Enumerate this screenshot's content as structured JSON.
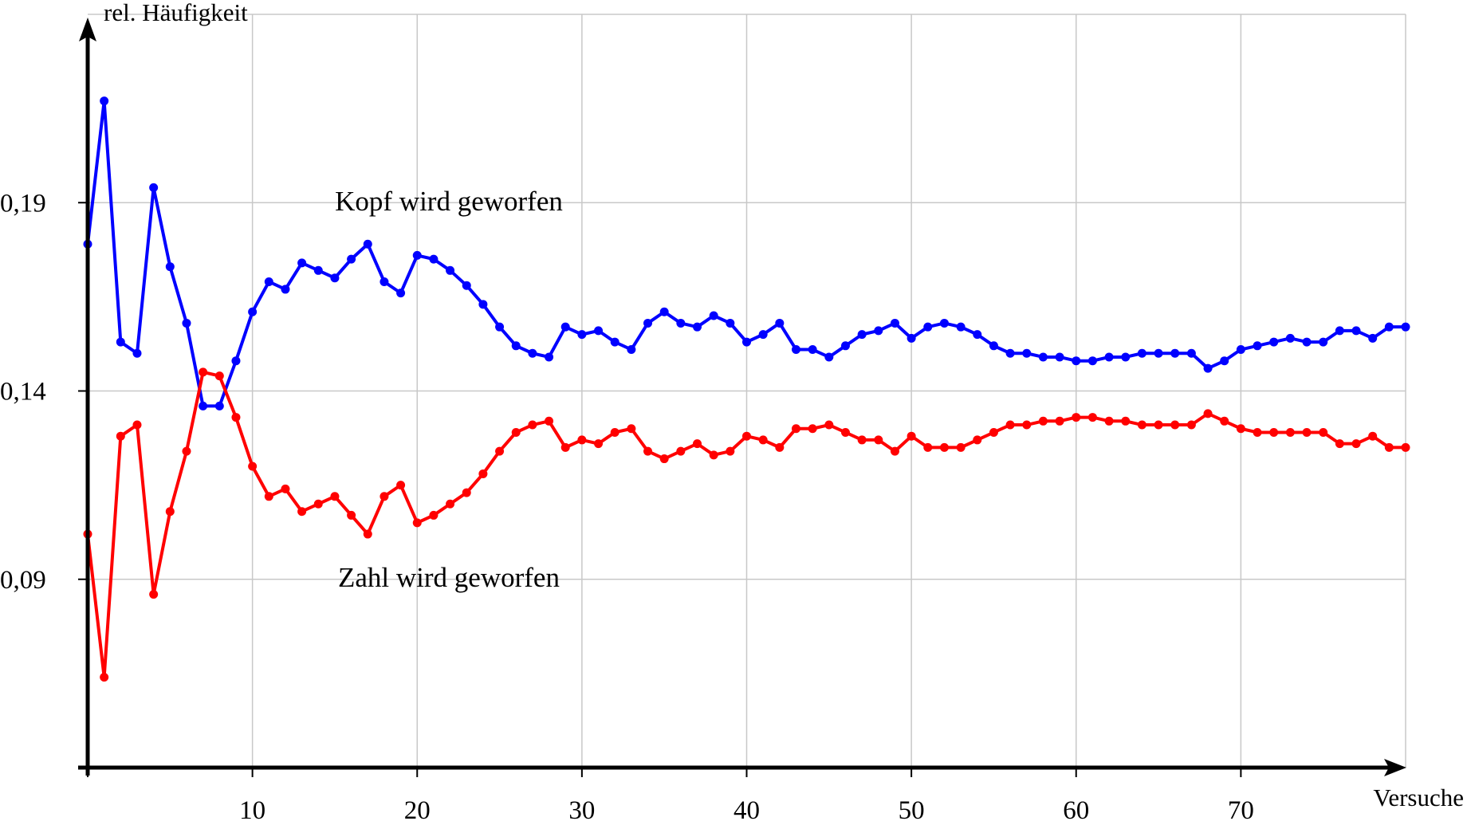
{
  "chart_data": {
    "type": "line",
    "title": "",
    "xlabel": "Versuche",
    "ylabel": "rel. Häufigkeit",
    "xlim": [
      0,
      80
    ],
    "ylim": [
      0.04,
      0.24
    ],
    "x_ticks": [
      10,
      20,
      30,
      40,
      50,
      60,
      70
    ],
    "x_tick_labels": [
      "10",
      "20",
      "30",
      "40",
      "50",
      "60",
      "70"
    ],
    "y_ticks": [
      0.09,
      0.14,
      0.19
    ],
    "y_tick_labels": [
      "0,09",
      "0,14",
      "0,19"
    ],
    "grid": true,
    "x": [
      0,
      1,
      2,
      3,
      4,
      5,
      6,
      7,
      8,
      9,
      10,
      11,
      12,
      13,
      14,
      15,
      16,
      17,
      18,
      19,
      20,
      21,
      22,
      23,
      24,
      25,
      26,
      27,
      28,
      29,
      30,
      31,
      32,
      33,
      34,
      35,
      36,
      37,
      38,
      39,
      40,
      41,
      42,
      43,
      44,
      45,
      46,
      47,
      48,
      49,
      50,
      51,
      52,
      53,
      54,
      55,
      56,
      57,
      58,
      59,
      60,
      61,
      62,
      63,
      64,
      65,
      66,
      67,
      68,
      69,
      70,
      71,
      72,
      73,
      74,
      75,
      76,
      77,
      78,
      79,
      80
    ],
    "series": [
      {
        "name": "Kopf wird geworfen",
        "color": "#0000ff",
        "values": [
          0.179,
          0.217,
          0.153,
          0.15,
          0.194,
          0.173,
          0.158,
          0.136,
          0.136,
          0.148,
          0.161,
          0.169,
          0.167,
          0.174,
          0.172,
          0.17,
          0.175,
          0.179,
          0.169,
          0.166,
          0.176,
          0.175,
          0.172,
          0.168,
          0.163,
          0.157,
          0.152,
          0.15,
          0.149,
          0.157,
          0.155,
          0.156,
          0.153,
          0.151,
          0.158,
          0.161,
          0.158,
          0.157,
          0.16,
          0.158,
          0.153,
          0.155,
          0.158,
          0.151,
          0.151,
          0.149,
          0.152,
          0.155,
          0.156,
          0.158,
          0.154,
          0.157,
          0.158,
          0.157,
          0.155,
          0.152,
          0.15,
          0.15,
          0.149,
          0.149,
          0.148,
          0.148,
          0.149,
          0.149,
          0.15,
          0.15,
          0.15,
          0.15,
          0.146,
          0.148,
          0.151,
          0.152,
          0.153,
          0.154,
          0.153,
          0.153,
          0.156,
          0.156,
          0.154,
          0.157,
          0.157
        ]
      },
      {
        "name": "Zahl wird geworfen",
        "color": "#ff0000",
        "values": [
          0.102,
          0.064,
          0.128,
          0.131,
          0.086,
          0.108,
          0.124,
          0.145,
          0.144,
          0.133,
          0.12,
          0.112,
          0.114,
          0.108,
          0.11,
          0.112,
          0.107,
          0.102,
          0.112,
          0.115,
          0.105,
          0.107,
          0.11,
          0.113,
          0.118,
          0.124,
          0.129,
          0.131,
          0.132,
          0.125,
          0.127,
          0.126,
          0.129,
          0.13,
          0.124,
          0.122,
          0.124,
          0.126,
          0.123,
          0.124,
          0.128,
          0.127,
          0.125,
          0.13,
          0.13,
          0.131,
          0.129,
          0.127,
          0.127,
          0.124,
          0.128,
          0.125,
          0.125,
          0.125,
          0.127,
          0.129,
          0.131,
          0.131,
          0.132,
          0.132,
          0.133,
          0.133,
          0.132,
          0.132,
          0.131,
          0.131,
          0.131,
          0.131,
          0.134,
          0.132,
          0.13,
          0.129,
          0.129,
          0.129,
          0.129,
          0.129,
          0.126,
          0.126,
          0.128,
          0.125,
          0.125
        ]
      }
    ]
  }
}
